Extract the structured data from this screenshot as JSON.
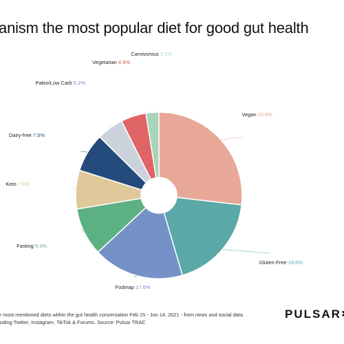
{
  "title": "ganism the most popular diet for good gut health",
  "chart_data": {
    "type": "pie",
    "subtype": "donut",
    "start_angle_deg": 0,
    "direction": "clockwise",
    "categories": [
      "Vegan",
      "Gluten-Free",
      "Fodmap",
      "Fasting",
      "Keto",
      "Dairy-free",
      "Paleo/Low Carb",
      "Vegetarian",
      "Carnivorous"
    ],
    "values": [
      26.8,
      18.6,
      17.6,
      9.3,
      7.5,
      7.5,
      5.2,
      4.9,
      2.5
    ],
    "value_labels": [
      "26.8%",
      "18.6%",
      "17.6%",
      "9.3%",
      "7.5%",
      "7.5%",
      "5.2%",
      "4.9%",
      "2.5%"
    ],
    "colors": [
      "#e8a898",
      "#5ba8a8",
      "#7592c8",
      "#5cb183",
      "#dfc99b",
      "#244b7c",
      "#cbd2dc",
      "#df6466",
      "#a8d4b8"
    ],
    "value_label_colors": [
      "#e8a898",
      "#5ba8a8",
      "#6e8cc4",
      "#5cb183",
      "#dfc99b",
      "#244b7c",
      "#6e8cc4",
      "#d9534f",
      "#a8d4b8"
    ]
  },
  "footnote": {
    "line1": "e most mentioned diets within the gut health conversation Feb 15 - Jun 14, 2021 - from news and social data",
    "line2": "luding Twitter, Instagram, TikTok & Forums. Source: Pulsar TRAC"
  },
  "logo": {
    "text": "PULSAR",
    "mark": "✱"
  }
}
